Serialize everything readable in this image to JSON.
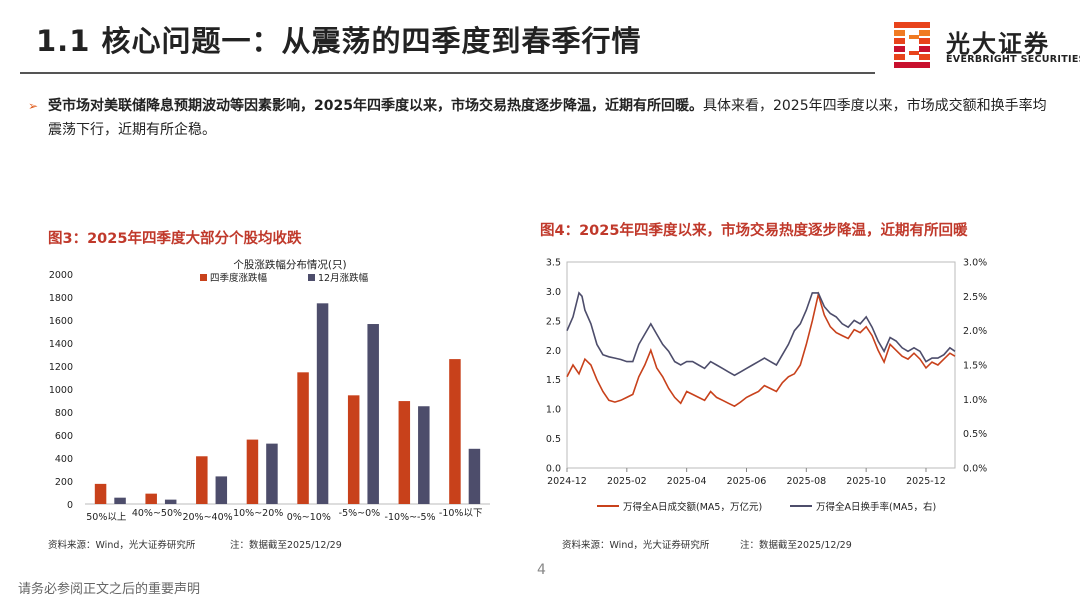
{
  "header": {
    "title": "1.1 核心问题一：从震荡的四季度到春季行情",
    "logo": {
      "name": "光大证券",
      "english": "EVERBRIGHT SECURITIES",
      "colors": [
        "#E8431B",
        "#F07A22",
        "#C8102E"
      ]
    }
  },
  "bullet": {
    "bold_text": "受市场对美联储降息预期波动等因素影响，2025年四季度以来，市场交易热度逐步降温，近期有所回暖。",
    "normal_text": "具体来看，2025年四季度以来，市场成交额和换手率均震荡下行，近期有所企稳。"
  },
  "figure3": {
    "label": "图3：2025年四季度大部分个股均收跌",
    "source": "资料来源：Wind，光大证券研究所",
    "note": "注：数据截至2025/12/29"
  },
  "figure4": {
    "label": "图4：2025年四季度以来，市场交易热度逐步降温，近期有所回暖",
    "source": "资料来源：Wind，光大证券研究所",
    "note": "注：数据截至2025/12/29"
  },
  "chart_data": [
    {
      "type": "bar",
      "title": "个股涨跌幅分布情况(只)",
      "categories": [
        "50%以上",
        "40%~50%",
        "20%~40%",
        "10%~20%",
        "0%~10%",
        "-5%~0%",
        "-10%~-5%",
        "-10%以下"
      ],
      "series": [
        {
          "name": "四季度涨跌幅",
          "color": "#C8411B",
          "values": [
            175,
            90,
            415,
            560,
            1145,
            945,
            895,
            1260
          ]
        },
        {
          "name": "12月涨跌幅",
          "color": "#4D4D6B",
          "values": [
            55,
            38,
            240,
            525,
            1745,
            1565,
            850,
            480
          ]
        }
      ],
      "ylim": [
        0,
        2000
      ],
      "yticks": [
        0,
        200,
        400,
        600,
        800,
        1000,
        1200,
        1400,
        1600,
        1800,
        2000
      ],
      "legend": "top-center"
    },
    {
      "type": "line",
      "x_ticks": [
        "2024-12",
        "2025-02",
        "2025-04",
        "2025-06",
        "2025-08",
        "2025-10",
        "2025-12"
      ],
      "x_range": [
        0,
        12.97
      ],
      "series": [
        {
          "name": "万得全A日成交额(MA5，万亿元)",
          "axis": "left",
          "color": "#C8411B",
          "points": [
            [
              0,
              1.55
            ],
            [
              0.2,
              1.75
            ],
            [
              0.4,
              1.6
            ],
            [
              0.6,
              1.85
            ],
            [
              0.8,
              1.75
            ],
            [
              1.0,
              1.5
            ],
            [
              1.2,
              1.3
            ],
            [
              1.4,
              1.15
            ],
            [
              1.6,
              1.12
            ],
            [
              1.8,
              1.15
            ],
            [
              2.0,
              1.2
            ],
            [
              2.2,
              1.25
            ],
            [
              2.4,
              1.55
            ],
            [
              2.6,
              1.75
            ],
            [
              2.8,
              2.0
            ],
            [
              2.9,
              1.85
            ],
            [
              3.0,
              1.7
            ],
            [
              3.2,
              1.55
            ],
            [
              3.4,
              1.35
            ],
            [
              3.6,
              1.2
            ],
            [
              3.8,
              1.1
            ],
            [
              4.0,
              1.3
            ],
            [
              4.2,
              1.25
            ],
            [
              4.4,
              1.2
            ],
            [
              4.6,
              1.15
            ],
            [
              4.8,
              1.3
            ],
            [
              5.0,
              1.2
            ],
            [
              5.2,
              1.15
            ],
            [
              5.4,
              1.1
            ],
            [
              5.6,
              1.05
            ],
            [
              5.8,
              1.12
            ],
            [
              6.0,
              1.2
            ],
            [
              6.2,
              1.25
            ],
            [
              6.4,
              1.3
            ],
            [
              6.6,
              1.4
            ],
            [
              6.8,
              1.35
            ],
            [
              7.0,
              1.3
            ],
            [
              7.2,
              1.45
            ],
            [
              7.4,
              1.55
            ],
            [
              7.6,
              1.6
            ],
            [
              7.8,
              1.75
            ],
            [
              8.0,
              2.1
            ],
            [
              8.2,
              2.5
            ],
            [
              8.4,
              2.95
            ],
            [
              8.6,
              2.6
            ],
            [
              8.8,
              2.4
            ],
            [
              9.0,
              2.3
            ],
            [
              9.2,
              2.25
            ],
            [
              9.4,
              2.2
            ],
            [
              9.6,
              2.35
            ],
            [
              9.8,
              2.3
            ],
            [
              10.0,
              2.4
            ],
            [
              10.2,
              2.25
            ],
            [
              10.4,
              2.0
            ],
            [
              10.6,
              1.8
            ],
            [
              10.8,
              2.1
            ],
            [
              11.0,
              2.0
            ],
            [
              11.2,
              1.9
            ],
            [
              11.4,
              1.85
            ],
            [
              11.6,
              1.95
            ],
            [
              11.8,
              1.85
            ],
            [
              12.0,
              1.7
            ],
            [
              12.2,
              1.8
            ],
            [
              12.4,
              1.75
            ],
            [
              12.6,
              1.85
            ],
            [
              12.8,
              1.95
            ],
            [
              12.97,
              1.9
            ]
          ]
        },
        {
          "name": "万得全A日换手率(MA5，右)",
          "axis": "right",
          "color": "#4D4D6B",
          "points": [
            [
              0,
              2.0
            ],
            [
              0.2,
              2.2
            ],
            [
              0.4,
              2.55
            ],
            [
              0.5,
              2.5
            ],
            [
              0.6,
              2.3
            ],
            [
              0.8,
              2.1
            ],
            [
              1.0,
              1.8
            ],
            [
              1.2,
              1.65
            ],
            [
              1.4,
              1.62
            ],
            [
              1.6,
              1.6
            ],
            [
              1.8,
              1.58
            ],
            [
              2.0,
              1.55
            ],
            [
              2.2,
              1.55
            ],
            [
              2.4,
              1.8
            ],
            [
              2.6,
              1.95
            ],
            [
              2.8,
              2.1
            ],
            [
              3.0,
              1.95
            ],
            [
              3.2,
              1.8
            ],
            [
              3.4,
              1.7
            ],
            [
              3.6,
              1.55
            ],
            [
              3.8,
              1.5
            ],
            [
              4.0,
              1.55
            ],
            [
              4.2,
              1.55
            ],
            [
              4.4,
              1.5
            ],
            [
              4.6,
              1.45
            ],
            [
              4.8,
              1.55
            ],
            [
              5.0,
              1.5
            ],
            [
              5.2,
              1.45
            ],
            [
              5.4,
              1.4
            ],
            [
              5.6,
              1.35
            ],
            [
              5.8,
              1.4
            ],
            [
              6.0,
              1.45
            ],
            [
              6.2,
              1.5
            ],
            [
              6.4,
              1.55
            ],
            [
              6.6,
              1.6
            ],
            [
              6.8,
              1.55
            ],
            [
              7.0,
              1.5
            ],
            [
              7.2,
              1.65
            ],
            [
              7.4,
              1.8
            ],
            [
              7.6,
              2.0
            ],
            [
              7.8,
              2.1
            ],
            [
              8.0,
              2.3
            ],
            [
              8.2,
              2.55
            ],
            [
              8.4,
              2.55
            ],
            [
              8.6,
              2.35
            ],
            [
              8.8,
              2.25
            ],
            [
              9.0,
              2.2
            ],
            [
              9.2,
              2.1
            ],
            [
              9.4,
              2.05
            ],
            [
              9.6,
              2.15
            ],
            [
              9.8,
              2.1
            ],
            [
              10.0,
              2.2
            ],
            [
              10.2,
              2.05
            ],
            [
              10.4,
              1.85
            ],
            [
              10.6,
              1.7
            ],
            [
              10.8,
              1.9
            ],
            [
              11.0,
              1.85
            ],
            [
              11.2,
              1.75
            ],
            [
              11.4,
              1.7
            ],
            [
              11.6,
              1.75
            ],
            [
              11.8,
              1.7
            ],
            [
              12.0,
              1.55
            ],
            [
              12.2,
              1.6
            ],
            [
              12.4,
              1.6
            ],
            [
              12.6,
              1.65
            ],
            [
              12.8,
              1.75
            ],
            [
              12.97,
              1.7
            ]
          ]
        }
      ],
      "ylim_left": [
        0,
        3.5
      ],
      "yticks_left": [
        "0.0",
        "0.5",
        "1.0",
        "1.5",
        "2.0",
        "2.5",
        "3.0",
        "3.5"
      ],
      "ylim_right": [
        0,
        3.0
      ],
      "yticks_right": [
        "0.0%",
        "0.5%",
        "1.0%",
        "1.5%",
        "2.0%",
        "2.5%",
        "3.0%"
      ],
      "legend": "bottom"
    }
  ]
}
